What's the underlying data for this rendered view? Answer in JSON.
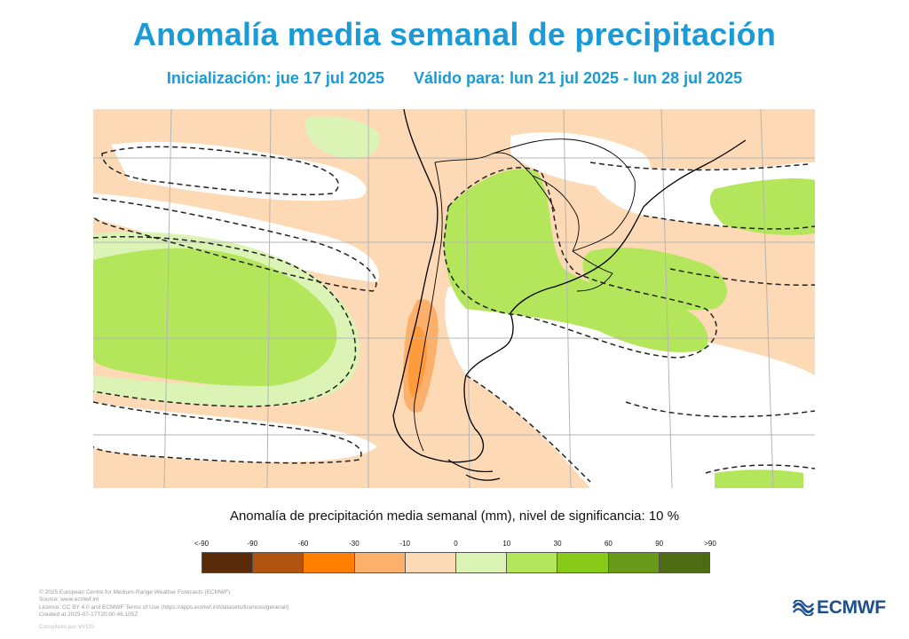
{
  "title": "Anomalía media semanal de precipitación",
  "initialization": "Inicialización: jue 17 jul 2025",
  "valid": "Válido para: lun 21 jul 2025 - lun 28 jul 2025",
  "legend": {
    "title": "Anomalía de precipitación media semanal (mm), nivel de significancia: 10 %",
    "ticks": [
      "<-90",
      "-90",
      "-60",
      "-30",
      "-10",
      "0",
      "10",
      "30",
      "60",
      "90",
      ">90"
    ],
    "colors": [
      "#5a2b08",
      "#b05410",
      "#ff7f00",
      "#fdb06b",
      "#fdd9b5",
      "#dcf3b6",
      "#b4e65c",
      "#88c91a",
      "#6a9a19",
      "#4c6b12"
    ]
  },
  "map_colors": {
    "ocean_dry": "#fdd9b5",
    "wet": "#b4e65c",
    "light_wet": "#dcf3b6",
    "strong_dry": "#fdb06b",
    "grid": "#b5b5b5",
    "coast": "#000000"
  },
  "footer": [
    "© 2025 European Centre for Medium-Range Weather Forecasts (ECMWF)",
    "Source: www.ecmwf.int",
    "Licence: CC BY 4.0 and ECMWF Terms of Use (https://apps.ecmwf.int/datasets/licences/general/)",
    "Created at 2025-07-17T20:00:46.105Z"
  ],
  "compiled_by": "Compilado por VVOS",
  "logo_text": "ECMWF"
}
